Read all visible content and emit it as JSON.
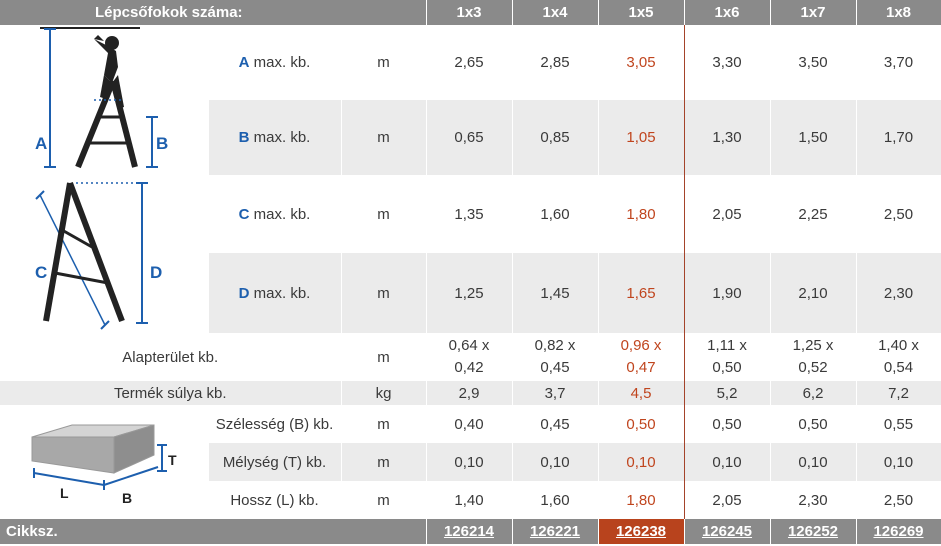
{
  "table": {
    "header_label": "Lépcsőfokok száma:",
    "columns": [
      "1x3",
      "1x4",
      "1x5",
      "1x6",
      "1x7",
      "1x8"
    ],
    "highlight_column": "1x5",
    "rows": {
      "a": {
        "letter": "A",
        "label": " max. kb.",
        "unit": "m",
        "values": [
          "2,65",
          "2,85",
          "3,05",
          "3,30",
          "3,50",
          "3,70"
        ]
      },
      "b": {
        "letter": "B",
        "label": " max. kb.",
        "unit": "m",
        "values": [
          "0,65",
          "0,85",
          "1,05",
          "1,30",
          "1,50",
          "1,70"
        ]
      },
      "c": {
        "letter": "C",
        "label": " max. kb.",
        "unit": "m",
        "values": [
          "1,35",
          "1,60",
          "1,80",
          "2,05",
          "2,25",
          "2,50"
        ]
      },
      "d": {
        "letter": "D",
        "label": " max. kb.",
        "unit": "m",
        "values": [
          "1,25",
          "1,45",
          "1,65",
          "1,90",
          "2,10",
          "2,30"
        ]
      },
      "area": {
        "label": "Alapterület kb.",
        "unit": "m",
        "values_line1": [
          "0,64 x",
          "0,82 x",
          "0,96 x",
          "1,11 x",
          "1,25 x",
          "1,40 x"
        ],
        "values_line2": [
          "0,42",
          "0,45",
          "0,47",
          "0,50",
          "0,52",
          "0,54"
        ]
      },
      "weight": {
        "label": "Termék súlya kb.",
        "unit": "kg",
        "values": [
          "2,9",
          "3,7",
          "4,5",
          "5,2",
          "6,2",
          "7,2"
        ]
      },
      "width": {
        "label": "Szélesség (B) kb.",
        "unit": "m",
        "values": [
          "0,40",
          "0,45",
          "0,50",
          "0,50",
          "0,50",
          "0,55"
        ]
      },
      "depth": {
        "label": "Mélység (T) kb.",
        "unit": "m",
        "values": [
          "0,10",
          "0,10",
          "0,10",
          "0,10",
          "0,10",
          "0,10"
        ]
      },
      "length": {
        "label": "Hossz (L) kb.",
        "unit": "m",
        "values": [
          "1,40",
          "1,60",
          "1,80",
          "2,05",
          "2,30",
          "2,50"
        ]
      }
    },
    "footer": {
      "label": "Cikksz.",
      "codes": [
        "126214",
        "126221",
        "126238",
        "126245",
        "126252",
        "126269"
      ]
    }
  },
  "diagrams": {
    "ladder_labels": {
      "a": "A",
      "b": "B",
      "c": "C",
      "d": "D"
    },
    "box_labels": {
      "t": "T",
      "l": "L",
      "b": "B"
    }
  },
  "colors": {
    "accent_blue": "#1d5fae",
    "highlight_red": "#c0451e",
    "header_grey": "#8a8a8a",
    "row_grey": "#ebebeb"
  }
}
